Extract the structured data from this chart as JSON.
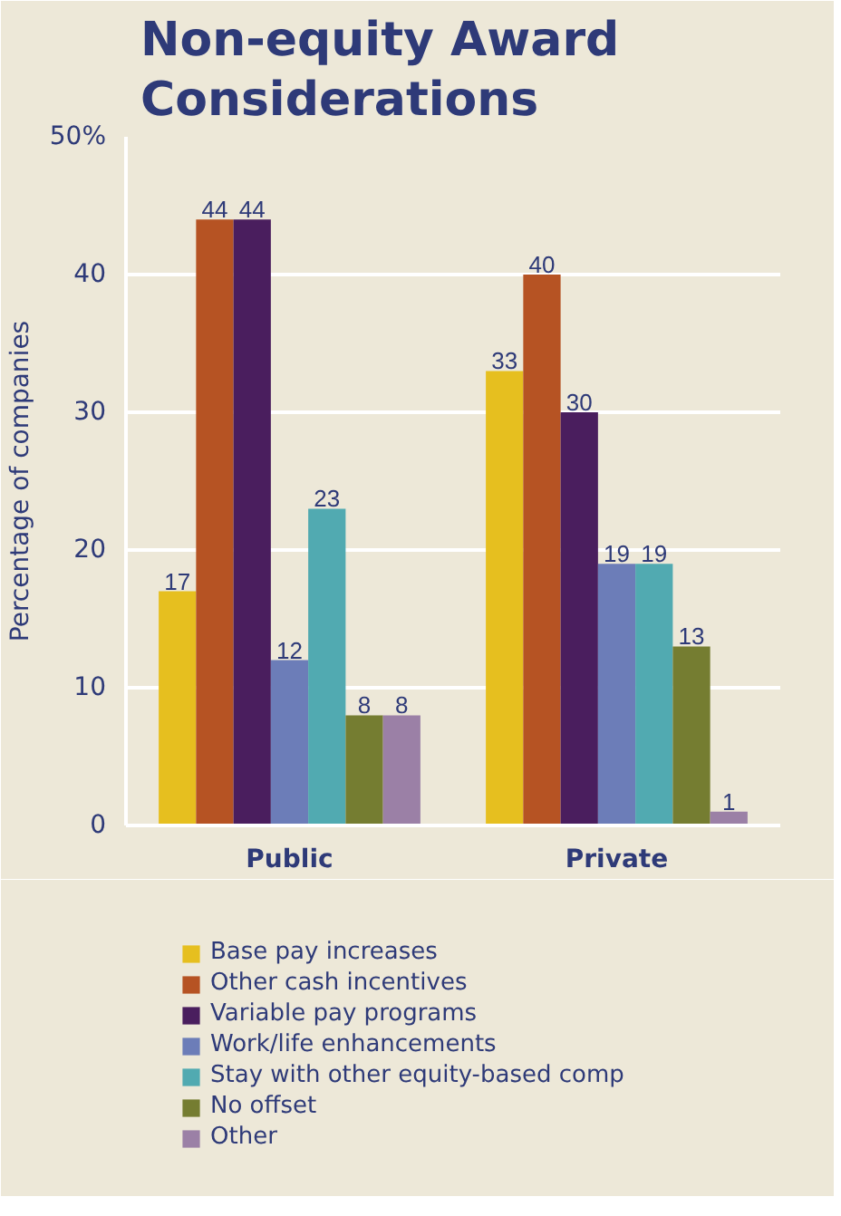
{
  "chart_data": {
    "type": "bar",
    "title": "Non-equity Award Considerations",
    "ylabel": "Percentage of companies",
    "categories": [
      "Public",
      "Private"
    ],
    "series": [
      {
        "name": "Base pay increases",
        "color": "#e6bf1f",
        "values": [
          17,
          33
        ]
      },
      {
        "name": "Other cash incentives",
        "color": "#b65323",
        "values": [
          44,
          40
        ]
      },
      {
        "name": "Variable pay programs",
        "color": "#4a1e5e",
        "values": [
          44,
          30
        ]
      },
      {
        "name": "Work/life enhancements",
        "color": "#6c7db8",
        "values": [
          12,
          19
        ]
      },
      {
        "name": "Stay with other equity-based comp",
        "color": "#51aab1",
        "values": [
          23,
          19
        ]
      },
      {
        "name": "No offset",
        "color": "#757d31",
        "values": [
          8,
          13
        ]
      },
      {
        "name": "Other",
        "color": "#9b80a6",
        "values": [
          8,
          1
        ]
      }
    ],
    "ylim": [
      0,
      50
    ],
    "yticks": [
      0,
      10,
      20,
      30,
      40,
      {
        "value": 50,
        "label": "50%"
      }
    ],
    "grid": "y",
    "legend": "bottom",
    "data_labels": true
  }
}
